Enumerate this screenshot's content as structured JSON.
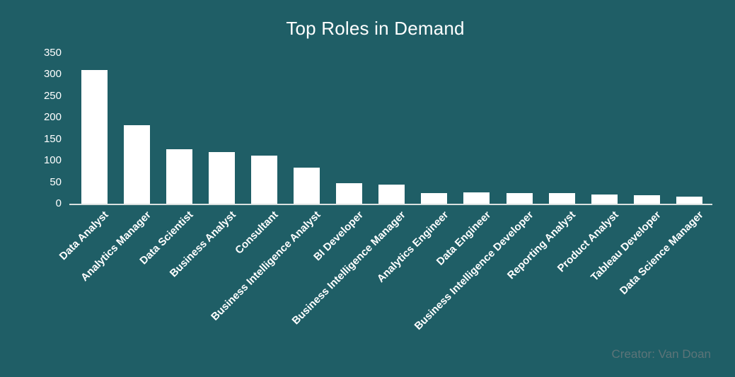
{
  "chart_data": {
    "type": "bar",
    "title": "Top Roles in Demand",
    "categories": [
      "Data Analyst",
      "Analytics Manager",
      "Data Scientist",
      "Business Analyst",
      "Consultant",
      "Business Intelligence Analyst",
      "BI Developer",
      "Business Intelligence Manager",
      "Analytics Engineer",
      "Data Engineer",
      "Business Intelligence Developer",
      "Reporting Analyst",
      "Product Analyst",
      "Tableau Developer",
      "Data Science Manager"
    ],
    "values": [
      310,
      182,
      127,
      119,
      111,
      83,
      47,
      44,
      24,
      26,
      25,
      25,
      22,
      20,
      17
    ],
    "xlabel": "",
    "ylabel": "",
    "ylim": [
      0,
      350
    ],
    "yticks": [
      0,
      50,
      100,
      150,
      200,
      250,
      300,
      350
    ],
    "grid": false,
    "legend": "none",
    "x_tick_rotation_deg": 45,
    "creator": "Creator: Van Doan",
    "colors": {
      "background": "#1F5E66",
      "bar": "#FFFFFF",
      "axis_line": "#D9E0E0",
      "text": "#FFFFFF",
      "creator_text": "#5C7478"
    }
  }
}
